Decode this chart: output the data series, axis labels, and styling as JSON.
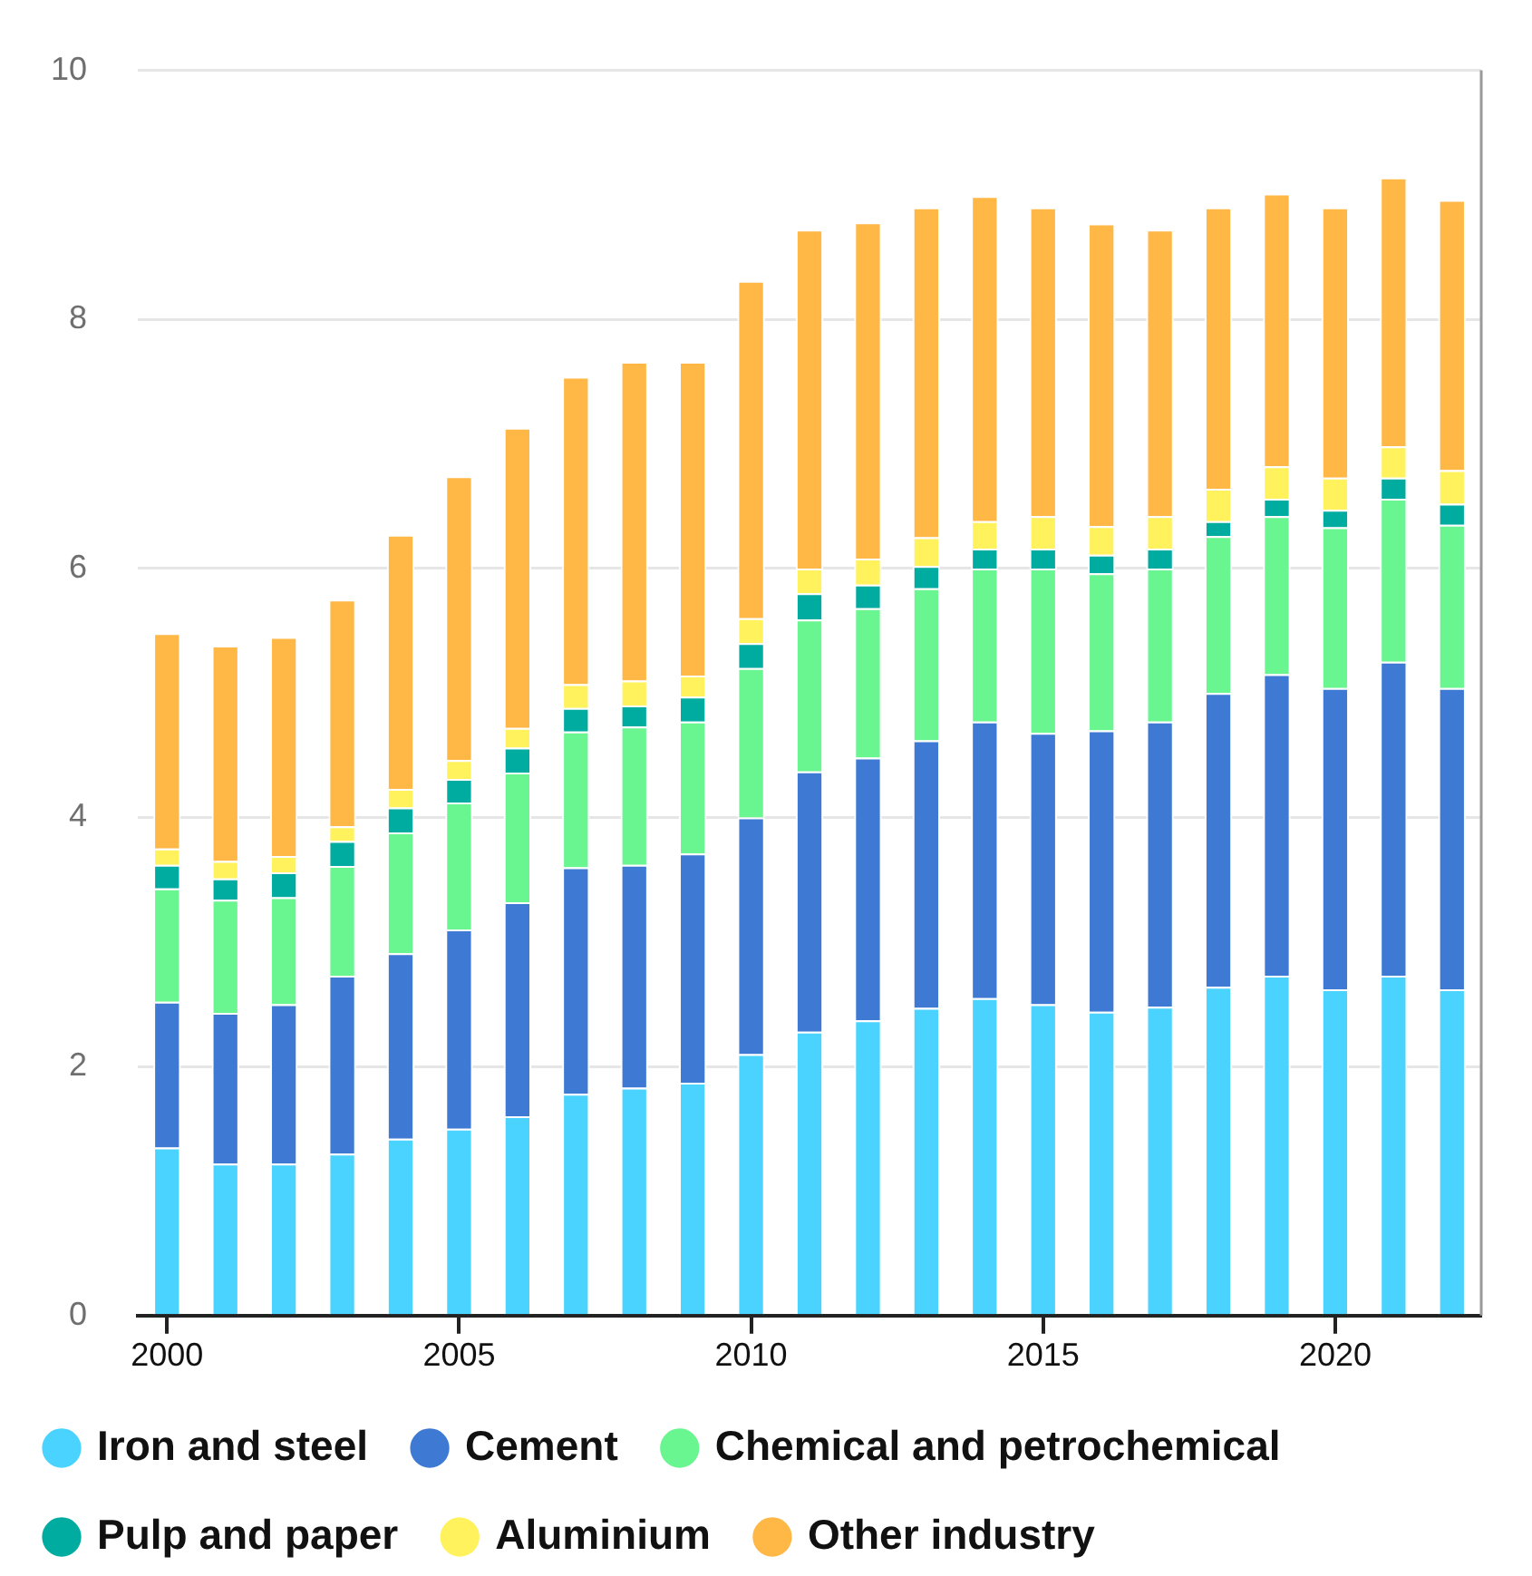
{
  "chart_data": {
    "type": "bar",
    "stacked": true,
    "categories": [
      "2000",
      null,
      null,
      null,
      null,
      "2005",
      null,
      null,
      null,
      null,
      "2010",
      null,
      null,
      null,
      null,
      "2015",
      null,
      null,
      null,
      null,
      "2020",
      null,
      null
    ],
    "series": [
      {
        "name": "Iron and steel",
        "color": "#4ad3ff",
        "values": [
          1.35,
          1.22,
          1.22,
          1.3,
          1.42,
          1.5,
          1.6,
          1.78,
          1.83,
          1.87,
          2.1,
          2.28,
          2.37,
          2.47,
          2.55,
          2.5,
          2.44,
          2.48,
          2.64,
          2.73,
          2.62,
          2.73,
          2.62
        ]
      },
      {
        "name": "Cement",
        "color": "#3e79d3",
        "values": [
          1.17,
          1.21,
          1.28,
          1.43,
          1.49,
          1.6,
          1.72,
          1.82,
          1.79,
          1.84,
          1.9,
          2.09,
          2.11,
          2.15,
          2.22,
          2.18,
          2.26,
          2.29,
          2.36,
          2.42,
          2.42,
          2.52,
          2.42
        ]
      },
      {
        "name": "Chemical and petrochemical",
        "color": "#69f590",
        "values": [
          0.91,
          0.91,
          0.86,
          0.88,
          0.97,
          1.02,
          1.04,
          1.09,
          1.11,
          1.06,
          1.2,
          1.22,
          1.2,
          1.22,
          1.23,
          1.32,
          1.26,
          1.23,
          1.26,
          1.27,
          1.29,
          1.31,
          1.31
        ]
      },
      {
        "name": "Pulp and paper",
        "color": "#00ab9f",
        "values": [
          0.19,
          0.17,
          0.2,
          0.2,
          0.2,
          0.19,
          0.2,
          0.19,
          0.17,
          0.2,
          0.2,
          0.21,
          0.19,
          0.18,
          0.16,
          0.16,
          0.15,
          0.16,
          0.12,
          0.14,
          0.14,
          0.17,
          0.17
        ]
      },
      {
        "name": "Aluminium",
        "color": "#fff25c",
        "values": [
          0.13,
          0.14,
          0.13,
          0.12,
          0.15,
          0.15,
          0.16,
          0.19,
          0.2,
          0.17,
          0.2,
          0.2,
          0.21,
          0.23,
          0.22,
          0.26,
          0.23,
          0.26,
          0.26,
          0.26,
          0.26,
          0.25,
          0.27
        ]
      },
      {
        "name": "Other industry",
        "color": "#ffb745",
        "values": [
          1.73,
          1.73,
          1.76,
          1.82,
          2.04,
          2.28,
          2.41,
          2.47,
          2.56,
          2.52,
          2.71,
          2.72,
          2.7,
          2.65,
          2.61,
          2.48,
          2.43,
          2.3,
          2.26,
          2.19,
          2.17,
          2.16,
          2.17
        ]
      }
    ],
    "ylim": [
      0,
      10
    ],
    "yticks": [
      0,
      2,
      4,
      6,
      8,
      10
    ],
    "grid": "y",
    "legend": "bottom"
  }
}
